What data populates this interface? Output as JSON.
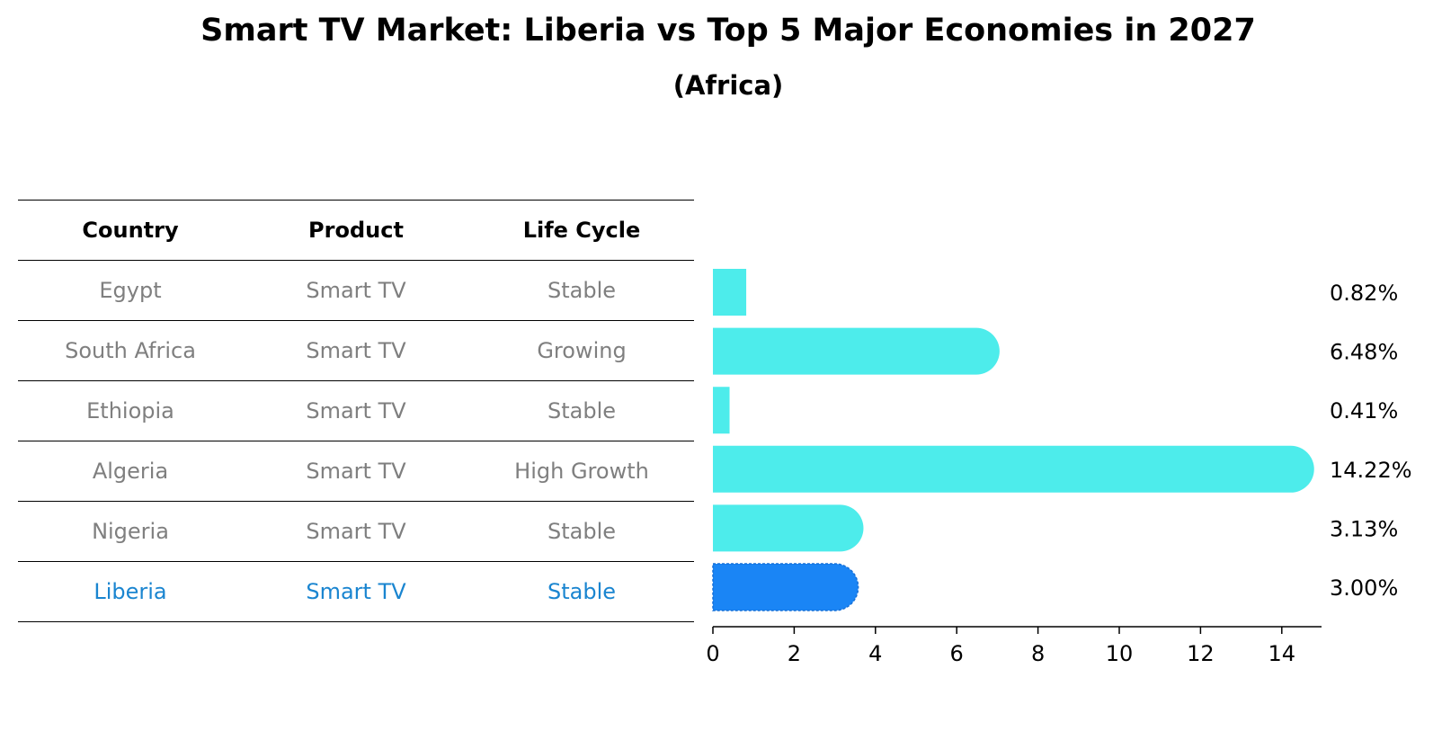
{
  "title": "Smart TV Market: Liberia vs Top 5 Major Economies in 2027",
  "subtitle": "(Africa)",
  "table": {
    "headers": [
      "Country",
      "Product",
      "Life Cycle"
    ],
    "rows": [
      [
        "Egypt",
        "Smart TV",
        "Stable"
      ],
      [
        "South Africa",
        "Smart TV",
        "Growing"
      ],
      [
        "Ethiopia",
        "Smart TV",
        "Stable"
      ],
      [
        "Algeria",
        "Smart TV",
        "High Growth"
      ],
      [
        "Nigeria",
        "Smart TV",
        "Stable"
      ],
      [
        "Liberia",
        "Smart TV",
        "Stable"
      ]
    ]
  },
  "colors": {
    "bar": "#4deceb",
    "highlight": "#1a85f5",
    "highlight_text": "#1a85d0"
  },
  "chart_data": {
    "type": "bar",
    "orientation": "horizontal",
    "categories": [
      "Egypt",
      "South Africa",
      "Ethiopia",
      "Algeria",
      "Nigeria",
      "Liberia"
    ],
    "values": [
      0.82,
      6.48,
      0.41,
      14.22,
      3.13,
      3.0
    ],
    "value_labels": [
      "0.82%",
      "6.48%",
      "0.41%",
      "14.22%",
      "3.13%",
      "3.00%"
    ],
    "highlight": "Liberia",
    "xlim": [
      0,
      15
    ],
    "xticks": [
      0,
      2,
      4,
      6,
      8,
      10,
      12,
      14
    ],
    "xtick_labels": [
      "0",
      "2",
      "4",
      "6",
      "8",
      "10",
      "12",
      "14"
    ],
    "xlabel": "",
    "ylabel": "",
    "grid": false
  }
}
